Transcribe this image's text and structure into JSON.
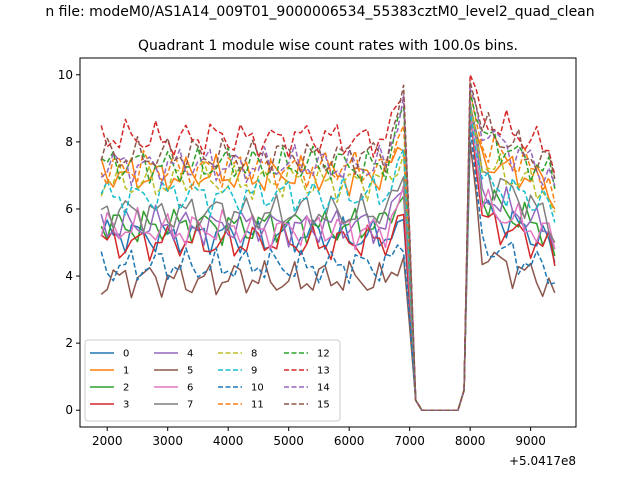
{
  "header": {
    "suptitle": "n file: modeM0/AS1A14_009T01_9000006534_55383cztM0_level2_quad_clean"
  },
  "chart_data": {
    "type": "line",
    "title": "Quadrant 1 module wise count rates with 100.0s bins.",
    "xlabel": "",
    "ylabel": "",
    "x_offset_label": "+5.0417e8",
    "xlim": [
      1550,
      9750
    ],
    "ylim": [
      -0.5,
      10.5
    ],
    "xticks": [
      2000,
      3000,
      4000,
      5000,
      6000,
      7000,
      8000,
      9000
    ],
    "yticks": [
      0,
      2,
      4,
      6,
      8,
      10
    ],
    "grid": false,
    "legend": "lower-left",
    "x_start": 1900,
    "x_step": 100,
    "gap": [
      7100,
      7900
    ],
    "series": [
      {
        "name": "0",
        "color": "#1f77b4",
        "dashed": false,
        "base": 5.2,
        "last": 4.4,
        "pre": 5.5,
        "peak": 9.0,
        "post": 6.0
      },
      {
        "name": "1",
        "color": "#ff7f0e",
        "dashed": false,
        "base": 7.0,
        "last": 6.0,
        "pre": 8.0,
        "peak": 9.0,
        "post": 7.5
      },
      {
        "name": "2",
        "color": "#2ca02c",
        "dashed": false,
        "base": 5.5,
        "last": 4.6,
        "pre": 6.5,
        "peak": 9.0,
        "post": 6.3
      },
      {
        "name": "3",
        "color": "#d62728",
        "dashed": false,
        "base": 5.0,
        "last": 4.3,
        "pre": 5.8,
        "peak": 9.0,
        "post": 5.7
      },
      {
        "name": "4",
        "color": "#9467bd",
        "dashed": false,
        "base": 5.5,
        "last": 4.8,
        "pre": 6.8,
        "peak": 9.2,
        "post": 6.5
      },
      {
        "name": "5",
        "color": "#8c564b",
        "dashed": false,
        "base": 3.9,
        "last": 3.5,
        "pre": 4.5,
        "peak": 8.0,
        "post": 4.6
      },
      {
        "name": "6",
        "color": "#e377c2",
        "dashed": false,
        "base": 5.4,
        "last": 4.8,
        "pre": 6.4,
        "peak": 9.0,
        "post": 6.1
      },
      {
        "name": "7",
        "color": "#7f7f7f",
        "dashed": false,
        "base": 5.9,
        "last": 5.0,
        "pre": 7.0,
        "peak": 9.1,
        "post": 7.1
      },
      {
        "name": "8",
        "color": "#bcbd22",
        "dashed": true,
        "base": 6.8,
        "last": 5.9,
        "pre": 7.5,
        "peak": 9.1,
        "post": 7.3
      },
      {
        "name": "9",
        "color": "#17becf",
        "dashed": true,
        "base": 6.4,
        "last": 5.6,
        "pre": 7.6,
        "peak": 9.0,
        "post": 6.8
      },
      {
        "name": "10",
        "color": "#1f77b4",
        "dashed": true,
        "base": 4.3,
        "last": 3.8,
        "pre": 5.0,
        "peak": 8.5,
        "post": 5.0
      },
      {
        "name": "11",
        "color": "#ff7f0e",
        "dashed": true,
        "base": 7.2,
        "last": 6.2,
        "pre": 8.6,
        "peak": 9.5,
        "post": 7.9
      },
      {
        "name": "12",
        "color": "#2ca02c",
        "dashed": true,
        "base": 7.3,
        "last": 6.6,
        "pre": 9.0,
        "peak": 9.5,
        "post": 8.2
      },
      {
        "name": "13",
        "color": "#d62728",
        "dashed": true,
        "base": 8.1,
        "last": 7.0,
        "pre": 9.6,
        "peak": 10.0,
        "post": 8.7
      },
      {
        "name": "14",
        "color": "#9467bd",
        "dashed": true,
        "base": 7.3,
        "last": 6.7,
        "pre": 9.3,
        "peak": 9.6,
        "post": 8.3
      },
      {
        "name": "15",
        "color": "#8c564b",
        "dashed": true,
        "base": 7.6,
        "last": 6.9,
        "pre": 9.4,
        "peak": 9.8,
        "post": 8.4
      }
    ]
  }
}
